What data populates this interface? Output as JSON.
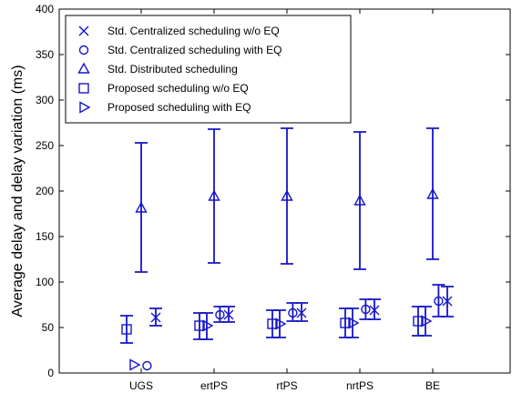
{
  "chart_data": {
    "type": "scatter",
    "title": "",
    "xlabel": "",
    "ylabel": "Average delay and delay variation (ms)",
    "categories": [
      "UGS",
      "ertPS",
      "rtPS",
      "nrtPS",
      "BE"
    ],
    "ylim": [
      0,
      400
    ],
    "yticks": [
      "0",
      "50",
      "100",
      "150",
      "200",
      "250",
      "300",
      "350",
      "400"
    ],
    "grid": false,
    "legend_position": "top-left",
    "color": "#1515c8",
    "series": [
      {
        "name": "Std. Centralized scheduling w/o EQ",
        "marker": "x",
        "offset": 0.2,
        "values": [
          61,
          64,
          66,
          69,
          79
        ],
        "err_low": [
          52,
          56,
          57,
          59,
          62
        ],
        "err_high": [
          71,
          73,
          77,
          81,
          95
        ]
      },
      {
        "name": "Std. Centralized scheduling with EQ",
        "marker": "circle",
        "offset": 0.08,
        "values": [
          8,
          64,
          66,
          70,
          79
        ],
        "err_low": [
          8,
          56,
          57,
          59,
          62
        ],
        "err_high": [
          8,
          73,
          77,
          81,
          97
        ]
      },
      {
        "name": "Std. Distributed scheduling",
        "marker": "triangle-up",
        "offset": 0.0,
        "values": [
          181,
          194,
          194,
          189,
          196
        ],
        "err_low": [
          111,
          121,
          120,
          114,
          125
        ],
        "err_high": [
          253,
          268,
          269,
          265,
          269
        ]
      },
      {
        "name": "Proposed scheduling w/o EQ",
        "marker": "square",
        "offset": -0.2,
        "values": [
          48,
          52,
          54,
          55,
          57
        ],
        "err_low": [
          33,
          37,
          39,
          39,
          41
        ],
        "err_high": [
          63,
          66,
          69,
          71,
          73
        ]
      },
      {
        "name": "Proposed scheduling with EQ",
        "marker": "triangle-right",
        "offset": -0.1,
        "values": [
          9,
          52,
          54,
          55,
          57
        ],
        "err_low": [
          9,
          37,
          39,
          39,
          41
        ],
        "err_high": [
          9,
          66,
          69,
          71,
          73
        ]
      }
    ]
  }
}
